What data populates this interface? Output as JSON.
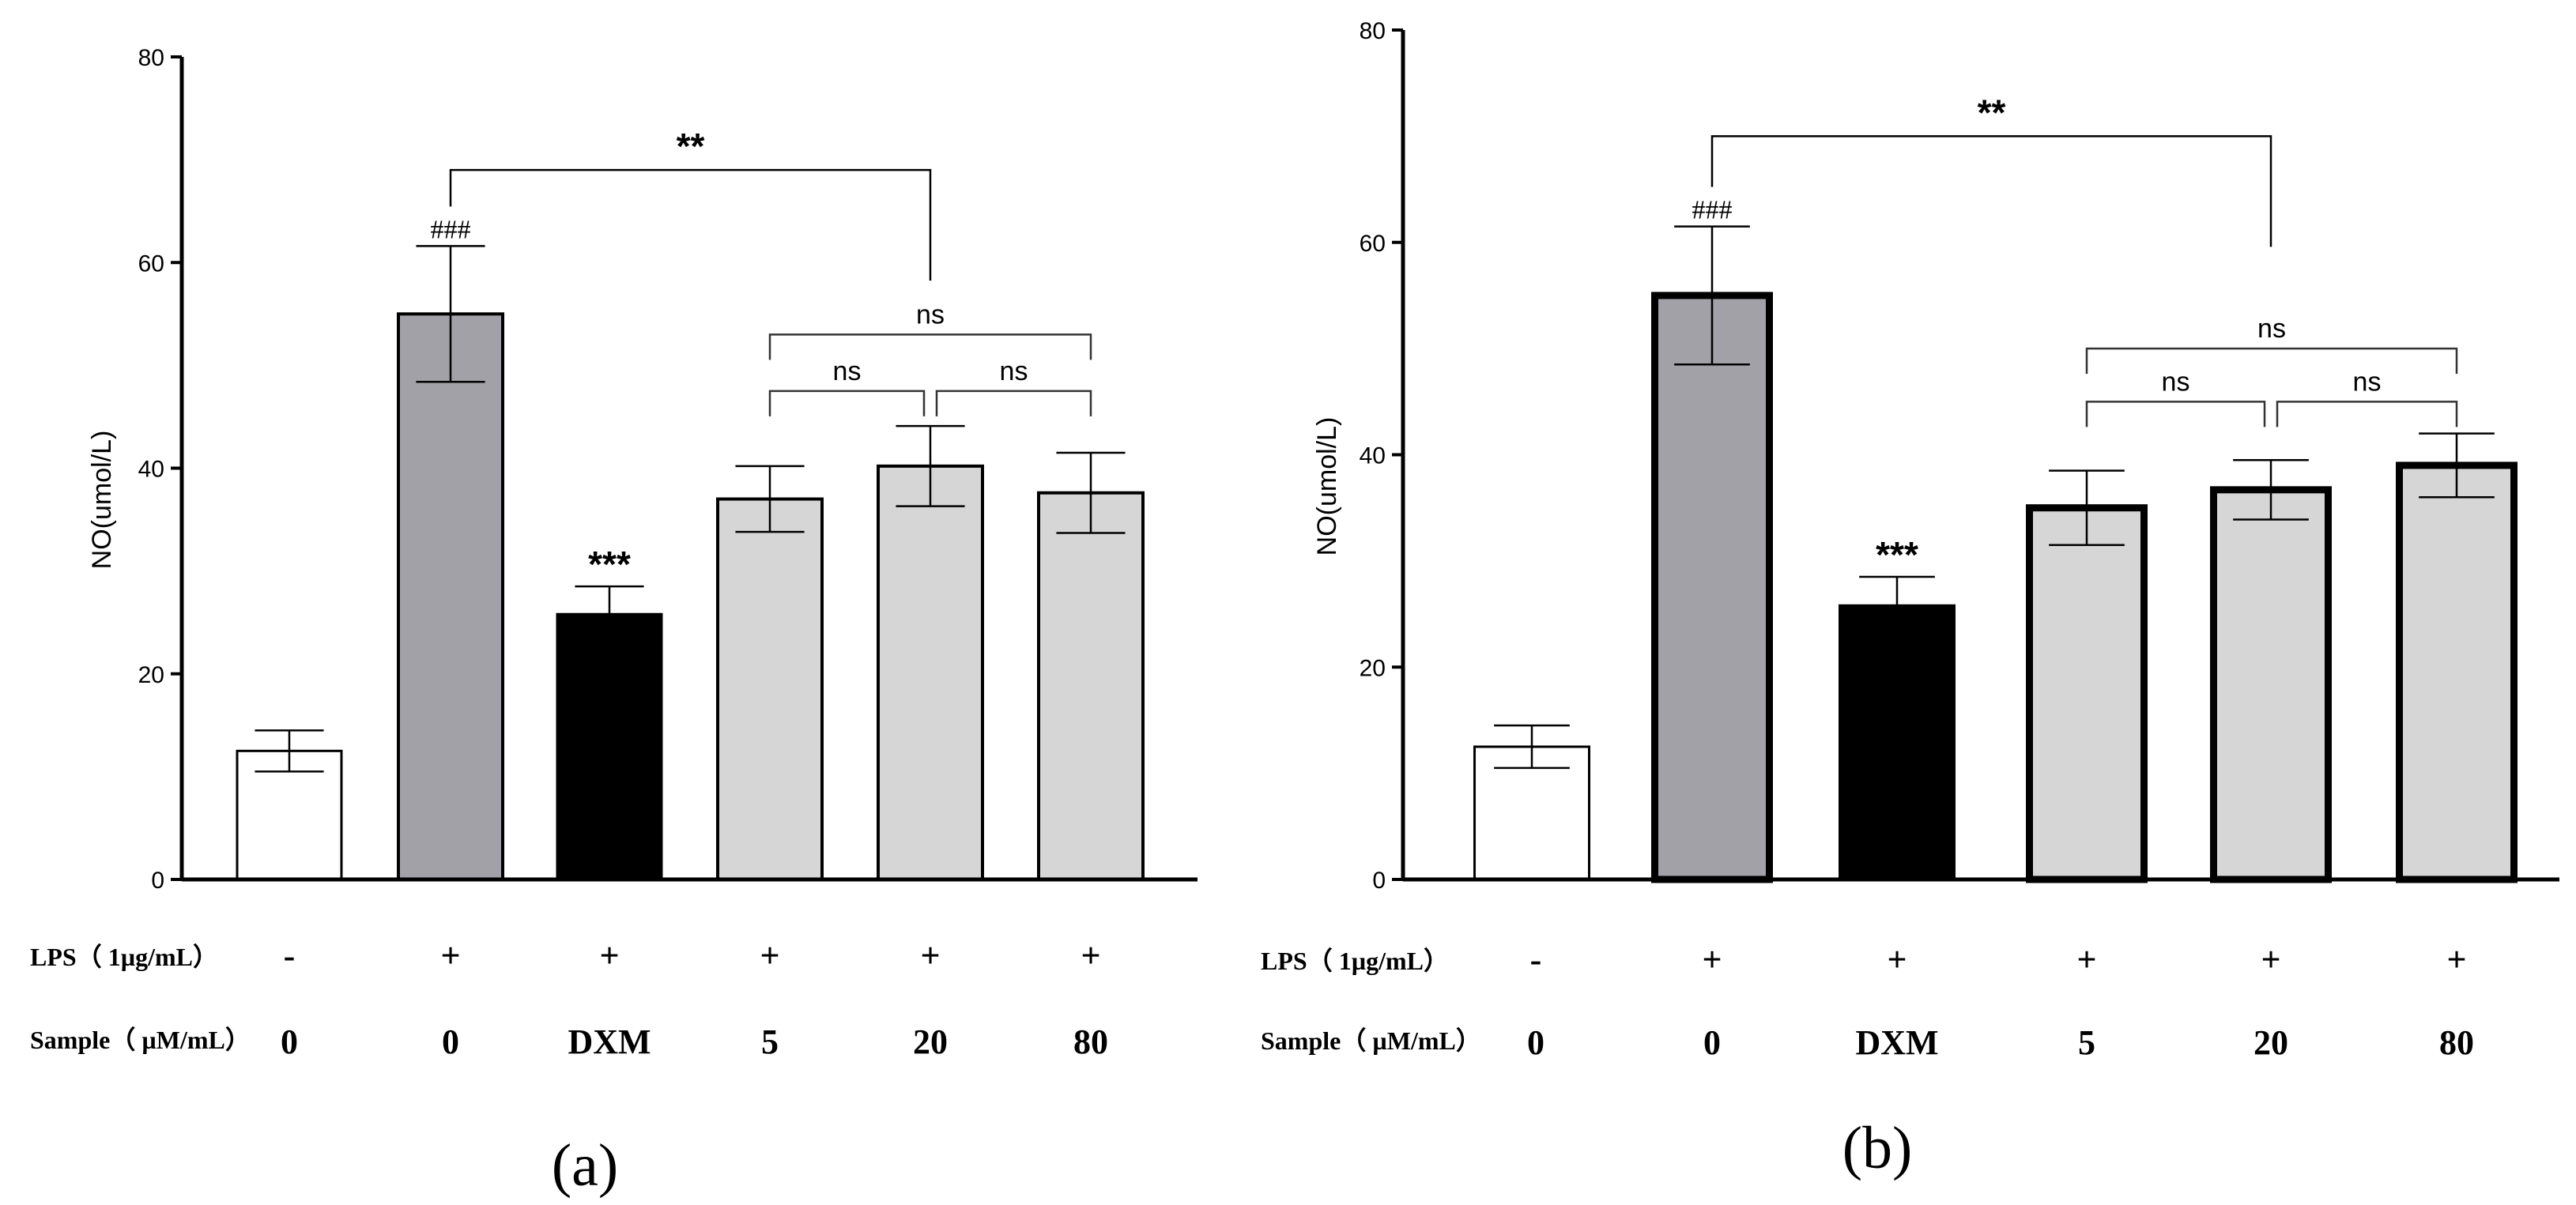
{
  "figure": {
    "panel_labels": [
      "(a)",
      "(b)"
    ]
  },
  "chart_data": [
    {
      "type": "bar",
      "panel": "(a)",
      "ylabel": "NO(umol/L)",
      "ylim": [
        0,
        80
      ],
      "yticks": [
        0,
        20,
        40,
        60,
        80
      ],
      "categories": [
        "0",
        "0",
        "DXM",
        "5",
        "20",
        "80"
      ],
      "lps_row_label": "LPS（ 1µg/mL）",
      "sample_row_label": "Sample（ µM/mL）",
      "lps": [
        "-",
        "+",
        "+",
        "+",
        "+",
        "+"
      ],
      "values": [
        12.5,
        55,
        25.8,
        37,
        40.2,
        37.6
      ],
      "errors": [
        2,
        6.6,
        2.7,
        3.2,
        3.9,
        3.9
      ],
      "bar_colors": [
        "#ffffff",
        "#a2a1a7",
        "#000000",
        "#d6d6d6",
        "#d6d6d6",
        "#d6d6d6"
      ],
      "bar_labels": [
        "",
        "###",
        "***",
        "",
        "",
        ""
      ],
      "comparisons": [
        {
          "from": 1,
          "to": 4,
          "label": "**",
          "y": 69
        },
        {
          "from": 3,
          "to": 5,
          "label": "ns",
          "y": 53
        },
        {
          "from": 3,
          "to": 4,
          "label": "ns",
          "y": 47.5
        },
        {
          "from": 4,
          "to": 5,
          "label": "ns",
          "y": 47.5
        }
      ]
    },
    {
      "type": "bar",
      "panel": "(b)",
      "ylabel": "NO(umol/L)",
      "ylim": [
        0,
        80
      ],
      "yticks": [
        0,
        20,
        40,
        60,
        80
      ],
      "categories": [
        "0",
        "0",
        "DXM",
        "5",
        "20",
        "80"
      ],
      "lps_row_label": "LPS（ 1µg/mL）",
      "sample_row_label": "Sample（ µM/mL）",
      "lps": [
        "-",
        "+",
        "+",
        "+",
        "+",
        "+"
      ],
      "values": [
        12.5,
        55,
        25.8,
        35,
        36.7,
        39
      ],
      "errors": [
        2,
        6.5,
        2.7,
        3.5,
        2.8,
        3
      ],
      "bar_colors": [
        "#ffffff",
        "#a2a1a7",
        "#000000",
        "#d6d6d6",
        "#d6d6d6",
        "#d6d6d6"
      ],
      "bar_labels": [
        "",
        "###",
        "***",
        "",
        "",
        ""
      ],
      "comparisons": [
        {
          "from": 1,
          "to": 4,
          "label": "**",
          "y": 70
        },
        {
          "from": 3,
          "to": 5,
          "label": "ns",
          "y": 50
        },
        {
          "from": 3,
          "to": 4,
          "label": "ns",
          "y": 45
        },
        {
          "from": 4,
          "to": 5,
          "label": "ns",
          "y": 45
        }
      ]
    }
  ]
}
